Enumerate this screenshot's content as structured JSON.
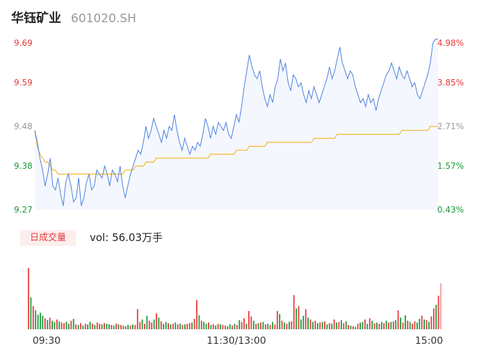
{
  "header": {
    "name": "华钰矿业",
    "code": "601020.SH"
  },
  "volume_panel": {
    "tag": "日成交量",
    "vol_label": "vol:",
    "vol_value": "56.03万手"
  },
  "colors": {
    "up": "#e8393b",
    "down": "#1a9a38",
    "price_line": "#4a7fe0",
    "avg_line": "#f5b731",
    "area_fill": "#f4f7fd",
    "tick_neutral": "#999999"
  },
  "chart_data": [
    {
      "type": "line",
      "title": "",
      "x_ticks": [
        "09:30",
        "11:30/13:00",
        "15:00"
      ],
      "y_ticks": [
        {
          "price": "9.69",
          "pct": "4.98%",
          "dir": "up"
        },
        {
          "price": "9.59",
          "pct": "3.85%",
          "dir": "up"
        },
        {
          "price": "9.48",
          "pct": "2.71%",
          "dir": "neutral"
        },
        {
          "price": "9.38",
          "pct": "1.57%",
          "dir": "down"
        },
        {
          "price": "9.27",
          "pct": "0.43%",
          "dir": "down"
        }
      ],
      "ylim": [
        9.27,
        9.69
      ],
      "reference_close": 9.23,
      "series": [
        {
          "values": [
            9.47,
            9.44,
            9.4,
            9.37,
            9.33,
            9.36,
            9.4,
            9.33,
            9.32,
            9.35,
            9.31,
            9.28,
            9.34,
            9.36,
            9.33,
            9.29,
            9.3,
            9.35,
            9.28,
            9.3,
            9.34,
            9.36,
            9.32,
            9.33,
            9.37,
            9.36,
            9.35,
            9.38,
            9.36,
            9.33,
            9.37,
            9.36,
            9.34,
            9.38,
            9.33,
            9.3,
            9.33,
            9.36,
            9.38,
            9.4,
            9.42,
            9.41,
            9.44,
            9.48,
            9.45,
            9.47,
            9.5,
            9.48,
            9.46,
            9.44,
            9.47,
            9.45,
            9.48,
            9.47,
            9.51,
            9.47,
            9.44,
            9.42,
            9.45,
            9.43,
            9.41,
            9.43,
            9.42,
            9.44,
            9.43,
            9.46,
            9.5,
            9.48,
            9.45,
            9.48,
            9.46,
            9.49,
            9.48,
            9.47,
            9.49,
            9.46,
            9.45,
            9.48,
            9.51,
            9.49,
            9.53,
            9.58,
            9.62,
            9.66,
            9.63,
            9.61,
            9.6,
            9.62,
            9.58,
            9.55,
            9.53,
            9.56,
            9.54,
            9.58,
            9.6,
            9.65,
            9.62,
            9.64,
            9.59,
            9.57,
            9.61,
            9.6,
            9.58,
            9.59,
            9.56,
            9.54,
            9.57,
            9.55,
            9.58,
            9.56,
            9.54,
            9.56,
            9.58,
            9.6,
            9.63,
            9.6,
            9.62,
            9.65,
            9.68,
            9.64,
            9.62,
            9.6,
            9.62,
            9.61,
            9.58,
            9.56,
            9.54,
            9.55,
            9.53,
            9.56,
            9.54,
            9.55,
            9.52,
            9.55,
            9.57,
            9.59,
            9.61,
            9.62,
            9.64,
            9.62,
            9.6,
            9.63,
            9.61,
            9.6,
            9.62,
            9.6,
            9.58,
            9.59,
            9.56,
            9.55,
            9.57,
            9.59,
            9.61,
            9.64,
            9.69,
            9.7,
            9.7
          ]
        },
        {
          "values": [
            9.47,
            9.43,
            9.41,
            9.4,
            9.39,
            9.39,
            9.38,
            9.37,
            9.37,
            9.36,
            9.36,
            9.36,
            9.36,
            9.36,
            9.36,
            9.36,
            9.36,
            9.36,
            9.36,
            9.36,
            9.36,
            9.36,
            9.36,
            9.36,
            9.36,
            9.36,
            9.36,
            9.36,
            9.36,
            9.36,
            9.36,
            9.36,
            9.36,
            9.36,
            9.36,
            9.37,
            9.37,
            9.37,
            9.37,
            9.38,
            9.38,
            9.38,
            9.38,
            9.39,
            9.39,
            9.39,
            9.39,
            9.4,
            9.4,
            9.4,
            9.4,
            9.4,
            9.4,
            9.4,
            9.4,
            9.4,
            9.4,
            9.4,
            9.4,
            9.4,
            9.4,
            9.4,
            9.4,
            9.4,
            9.4,
            9.4,
            9.4,
            9.4,
            9.41,
            9.41,
            9.41,
            9.41,
            9.41,
            9.41,
            9.41,
            9.41,
            9.41,
            9.41,
            9.42,
            9.42,
            9.42,
            9.42,
            9.42,
            9.43,
            9.43,
            9.43,
            9.43,
            9.43,
            9.43,
            9.43,
            9.44,
            9.44,
            9.44,
            9.44,
            9.44,
            9.44,
            9.44,
            9.44,
            9.44,
            9.44,
            9.44,
            9.44,
            9.44,
            9.44,
            9.44,
            9.44,
            9.44,
            9.44,
            9.45,
            9.45,
            9.45,
            9.45,
            9.45,
            9.45,
            9.45,
            9.45,
            9.45,
            9.46,
            9.46,
            9.46,
            9.46,
            9.46,
            9.46,
            9.46,
            9.46,
            9.46,
            9.46,
            9.46,
            9.46,
            9.46,
            9.46,
            9.46,
            9.46,
            9.46,
            9.46,
            9.46,
            9.46,
            9.46,
            9.46,
            9.46,
            9.46,
            9.46,
            9.47,
            9.47,
            9.47,
            9.47,
            9.47,
            9.47,
            9.47,
            9.47,
            9.47,
            9.47,
            9.47,
            9.48,
            9.48,
            9.48,
            9.48
          ]
        }
      ]
    },
    {
      "type": "bar",
      "title": "",
      "ylim": [
        0,
        100
      ],
      "values": [
        100,
        52,
        38,
        31,
        24,
        27,
        22,
        18,
        15,
        19,
        14,
        12,
        16,
        13,
        11,
        10,
        12,
        9,
        14,
        17,
        8,
        7,
        10,
        6,
        9,
        8,
        12,
        9,
        7,
        11,
        9,
        8,
        10,
        9,
        8,
        7,
        6,
        9,
        8,
        7,
        6,
        5,
        7,
        6,
        8,
        7,
        33,
        12,
        16,
        9,
        22,
        14,
        11,
        16,
        26,
        19,
        13,
        9,
        12,
        10,
        8,
        9,
        11,
        8,
        9,
        7,
        8,
        9,
        10,
        11,
        17,
        48,
        23,
        14,
        12,
        9,
        11,
        7,
        8,
        6,
        9,
        8,
        7,
        6,
        5,
        8,
        6,
        9,
        7,
        15,
        12,
        18,
        9,
        30,
        21,
        14,
        9,
        10,
        11,
        12,
        8,
        9,
        7,
        12,
        8,
        30,
        25,
        14,
        11,
        9,
        12,
        13,
        56,
        34,
        38,
        16,
        22,
        33,
        19,
        16,
        12,
        14,
        10,
        11,
        12,
        13,
        8,
        10,
        9,
        16,
        11,
        12,
        15,
        10,
        13,
        7,
        6,
        5,
        4,
        9,
        11,
        12,
        16,
        9,
        18,
        14,
        10,
        11,
        9,
        12,
        10,
        14,
        11,
        12,
        13,
        15,
        31,
        19,
        11,
        23,
        14,
        12,
        9,
        13,
        11,
        17,
        22,
        16,
        15,
        12,
        21,
        34,
        40,
        55,
        75
      ],
      "colors": [
        "up",
        "down",
        "up",
        "down",
        "down",
        "down",
        "down",
        "up",
        "down",
        "up",
        "down",
        "down",
        "up",
        "down",
        "up",
        "up",
        "down",
        "down",
        "up",
        "down",
        "up",
        "down",
        "up",
        "down",
        "up",
        "down",
        "down",
        "up",
        "down",
        "up",
        "up",
        "down",
        "up",
        "down",
        "down",
        "up",
        "down",
        "up",
        "down",
        "up",
        "up",
        "down",
        "down",
        "up",
        "down",
        "up",
        "up",
        "up",
        "down",
        "up",
        "down",
        "up",
        "up",
        "down",
        "up",
        "down",
        "up",
        "down",
        "down",
        "up",
        "down",
        "up",
        "down",
        "up",
        "down",
        "up",
        "down",
        "up",
        "up",
        "down",
        "up",
        "up",
        "down",
        "up",
        "down",
        "down",
        "up",
        "down",
        "up",
        "down",
        "up",
        "down",
        "up",
        "up",
        "down",
        "down",
        "up",
        "down",
        "up",
        "down",
        "up",
        "up",
        "down",
        "up",
        "up",
        "down",
        "up",
        "down",
        "up",
        "down",
        "up",
        "down",
        "up",
        "down",
        "up",
        "up",
        "down",
        "up",
        "down",
        "up",
        "down",
        "up",
        "up",
        "down",
        "up",
        "down",
        "down",
        "up",
        "down",
        "up",
        "down",
        "up",
        "down",
        "up",
        "down",
        "up",
        "down",
        "up",
        "down",
        "up",
        "down",
        "up",
        "down",
        "up",
        "down",
        "up",
        "down",
        "up",
        "down",
        "up",
        "down",
        "down",
        "up",
        "down",
        "up",
        "down",
        "up",
        "down",
        "up",
        "down",
        "up",
        "down",
        "up",
        "down",
        "up",
        "down",
        "up",
        "down",
        "up",
        "down",
        "up",
        "down",
        "up",
        "up",
        "down",
        "down",
        "up",
        "down",
        "up",
        "down",
        "up",
        "up",
        "down",
        "up",
        "up",
        "up"
      ]
    }
  ]
}
